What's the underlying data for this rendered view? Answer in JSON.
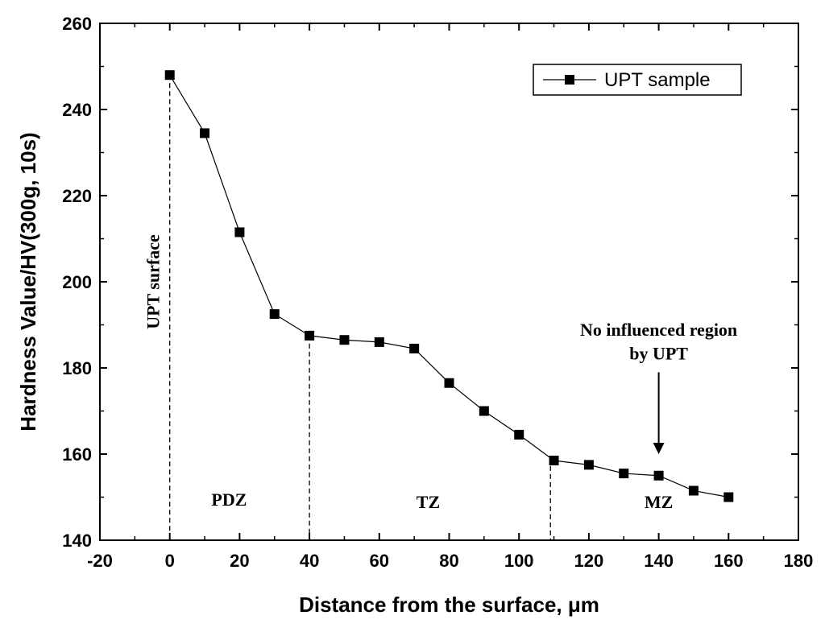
{
  "chart_data": {
    "type": "line",
    "title": "",
    "xlabel": "Distance from the surface, μm",
    "ylabel": "Hardness Value/HV(300g, 10s)",
    "xlim": [
      -20,
      180
    ],
    "ylim": [
      140,
      260
    ],
    "xticks": [
      -20,
      0,
      20,
      40,
      60,
      80,
      100,
      120,
      140,
      160,
      180
    ],
    "yticks": [
      140,
      160,
      180,
      200,
      220,
      240,
      260
    ],
    "grid": false,
    "legend_position": "top-right",
    "series": [
      {
        "name": "UPT sample",
        "marker": "square",
        "color": "#000000",
        "x": [
          0,
          10,
          20,
          30,
          40,
          50,
          60,
          70,
          80,
          90,
          100,
          110,
          120,
          130,
          140,
          150,
          160
        ],
        "y": [
          248,
          234.5,
          211.5,
          192.5,
          187.5,
          186.5,
          186,
          184.5,
          176.5,
          170,
          164.5,
          158.5,
          157.5,
          155.5,
          155,
          151.5,
          150
        ]
      }
    ],
    "vlines": [
      0,
      40,
      109
    ],
    "annotations": [
      {
        "text": "UPT surface",
        "x": -3,
        "y": 200,
        "rotation": -90
      },
      {
        "text": "PDZ",
        "x": 17,
        "y": 148
      },
      {
        "text": "TZ",
        "x": 74,
        "y": 147.5
      },
      {
        "text": "MZ",
        "x": 140,
        "y": 147.5
      },
      {
        "text": "No influenced region",
        "x": 140,
        "y": 187.5
      },
      {
        "text": "by UPT",
        "x": 140,
        "y": 182
      }
    ],
    "arrow": {
      "x": 140,
      "y_from": 179,
      "y_to": 160
    }
  }
}
